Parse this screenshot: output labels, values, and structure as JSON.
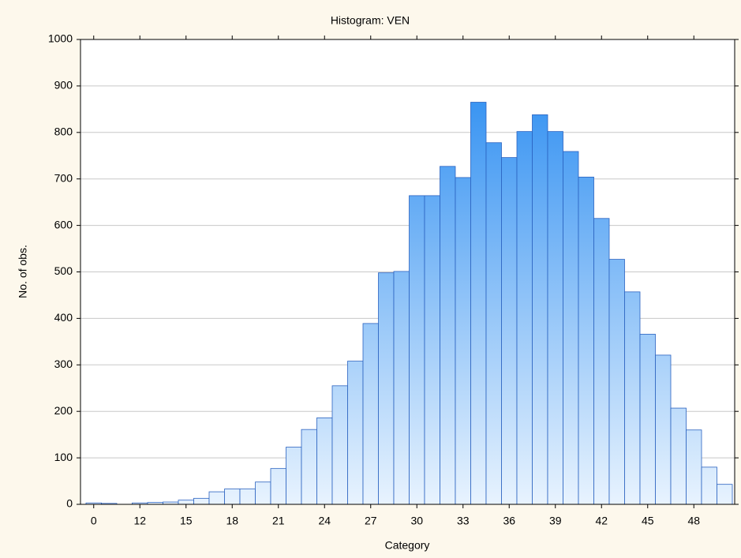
{
  "chart_data": {
    "type": "bar",
    "title": "Histogram: VEN",
    "x_label": "Category",
    "y_label": "No. of obs.",
    "categories": [
      "0",
      null,
      null,
      "12",
      null,
      null,
      "15",
      null,
      null,
      "18",
      null,
      null,
      "21",
      null,
      null,
      "24",
      null,
      null,
      "27",
      null,
      null,
      "30",
      null,
      null,
      "33",
      null,
      null,
      "36",
      null,
      null,
      "39",
      null,
      null,
      "42",
      null,
      null,
      "45",
      null,
      null,
      "48",
      null,
      null
    ],
    "values": [
      3,
      2,
      0,
      3,
      4,
      5,
      9,
      13,
      27,
      33,
      33,
      48,
      77,
      123,
      161,
      186,
      255,
      308,
      389,
      498,
      501,
      664,
      664,
      727,
      703,
      865,
      778,
      746,
      802,
      838,
      802,
      759,
      704,
      615,
      527,
      457,
      366,
      321,
      207,
      160,
      80,
      43
    ],
    "color": "#1f86f0",
    "ylim": [
      0,
      1000
    ],
    "yticks": [
      0,
      100,
      200,
      300,
      400,
      500,
      600,
      700,
      800,
      900,
      1000
    ],
    "grid": true
  }
}
